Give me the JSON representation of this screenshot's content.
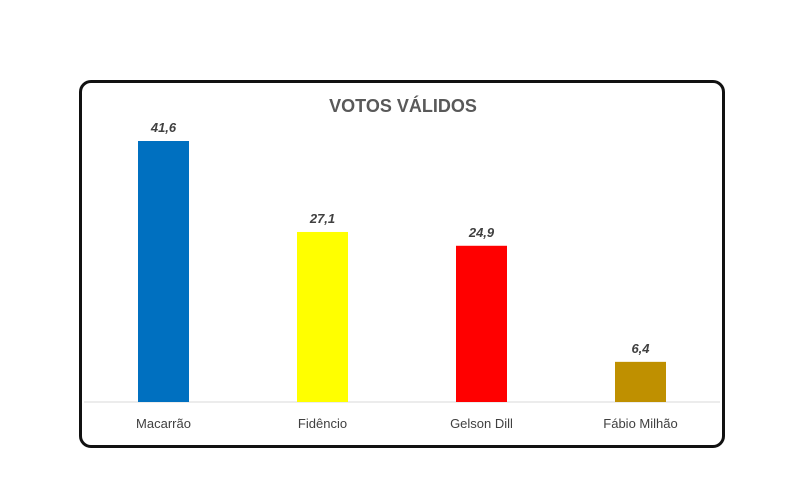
{
  "chart_data": {
    "type": "bar",
    "title": "VOTOS VÁLIDOS",
    "categories": [
      "Macarrão",
      "Fidêncio",
      "Gelson Dill",
      "Fábio Milhão"
    ],
    "values": [
      41.6,
      27.1,
      24.9,
      6.4
    ],
    "value_labels": [
      "41,6",
      "27,1",
      "24,9",
      "6,4"
    ],
    "colors": [
      "#0070C0",
      "#FFFF00",
      "#FF0000",
      "#BF9000"
    ],
    "xlabel": "",
    "ylabel": "",
    "ylim": [
      0,
      41.6
    ],
    "grid": false,
    "legend": "none"
  }
}
